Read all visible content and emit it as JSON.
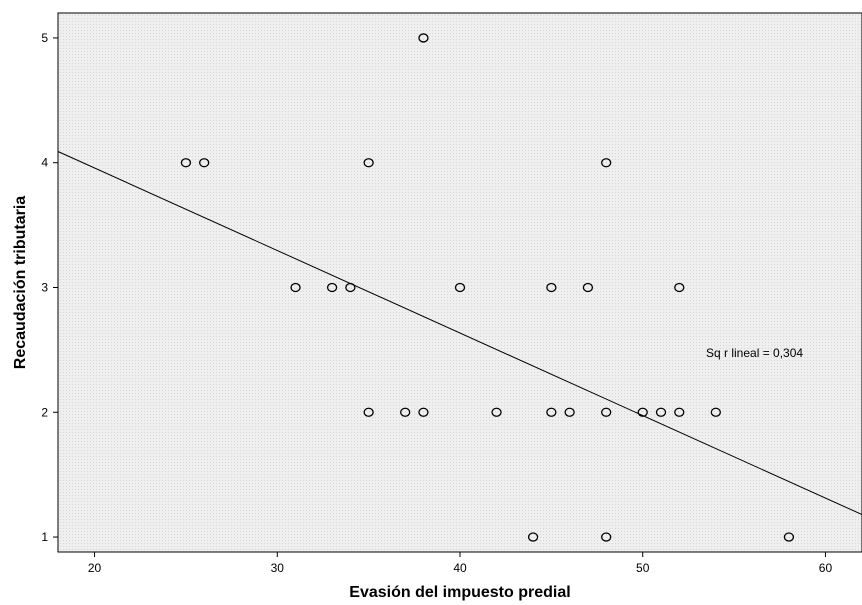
{
  "chart_data": {
    "type": "scatter",
    "title": "",
    "xlabel": "Evasión del impuesto predial",
    "ylabel": "Recaudación tributaria",
    "xlim": [
      18,
      62
    ],
    "ylim": [
      0.88,
      5.2
    ],
    "x_ticks": [
      "20",
      "30",
      "40",
      "50",
      "60"
    ],
    "y_ticks": [
      "1",
      "2",
      "3",
      "4",
      "5"
    ],
    "grid": false,
    "background_color": "#efefef",
    "series": [
      {
        "points": [
          {
            "x": 38,
            "y": 5
          },
          {
            "x": 25,
            "y": 4
          },
          {
            "x": 26,
            "y": 4
          },
          {
            "x": 35,
            "y": 4
          },
          {
            "x": 48,
            "y": 4
          },
          {
            "x": 31,
            "y": 3
          },
          {
            "x": 33,
            "y": 3
          },
          {
            "x": 34,
            "y": 3
          },
          {
            "x": 40,
            "y": 3
          },
          {
            "x": 45,
            "y": 3
          },
          {
            "x": 47,
            "y": 3
          },
          {
            "x": 52,
            "y": 3
          },
          {
            "x": 35,
            "y": 2
          },
          {
            "x": 37,
            "y": 2
          },
          {
            "x": 38,
            "y": 2
          },
          {
            "x": 42,
            "y": 2
          },
          {
            "x": 45,
            "y": 2
          },
          {
            "x": 46,
            "y": 2
          },
          {
            "x": 48,
            "y": 2
          },
          {
            "x": 50,
            "y": 2
          },
          {
            "x": 51,
            "y": 2
          },
          {
            "x": 52,
            "y": 2
          },
          {
            "x": 54,
            "y": 2
          },
          {
            "x": 44,
            "y": 1
          },
          {
            "x": 48,
            "y": 1
          },
          {
            "x": 58,
            "y": 1
          }
        ]
      }
    ],
    "fit_line": {
      "type": "linear",
      "start": {
        "x": 18,
        "y": 4.09
      },
      "end": {
        "x": 62,
        "y": 1.18
      }
    },
    "annotation": "Sq r lineal = 0,304"
  }
}
